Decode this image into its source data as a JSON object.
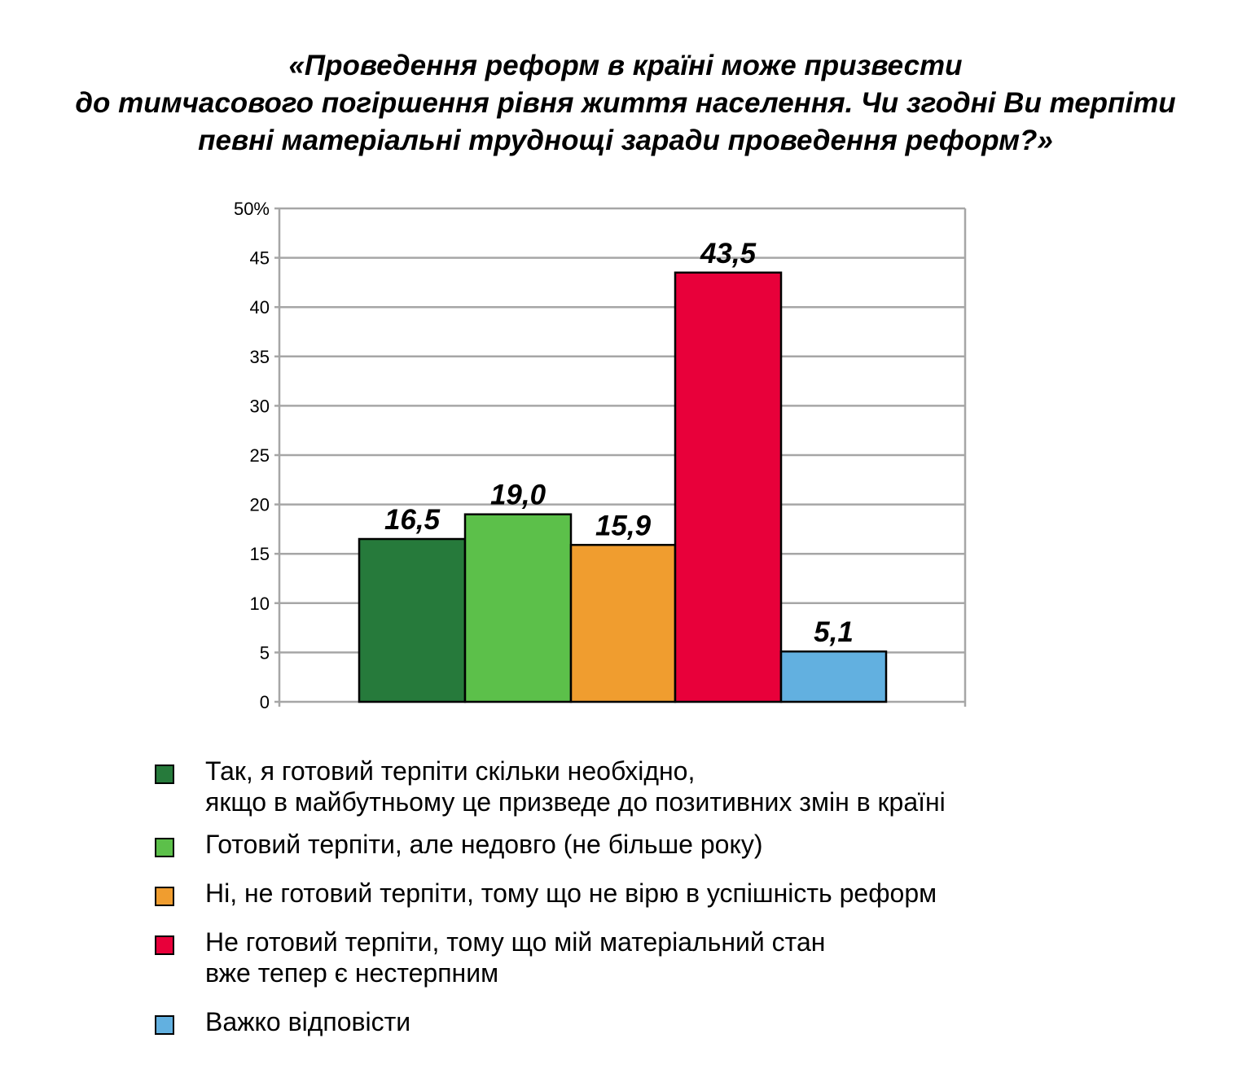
{
  "chart_data": {
    "type": "bar",
    "title_lines": [
      "«Проведення реформ в країні може призвести",
      "до тимчасового погіршення рівня життя населення. Чи згодні Ви терпіти",
      "певні матеріальні труднощі заради проведення реформ?»"
    ],
    "ylim": [
      0,
      50
    ],
    "yticks": [
      "0",
      "5",
      "10",
      "15",
      "20",
      "25",
      "30",
      "35",
      "40",
      "45",
      "50%"
    ],
    "grid": true,
    "legend_position": "bottom",
    "series": [
      {
        "name": "Так, я готовий терпіти скільки необхідно,\nякщо в майбутньому це призведе до позитивних змін в країні",
        "value": 16.5,
        "label": "16,5",
        "color": "#267a3b"
      },
      {
        "name": "Готовий терпіти, але недовго (не більше року)",
        "value": 19.0,
        "label": "19,0",
        "color": "#5cc04a"
      },
      {
        "name": "Ні, не готовий терпіти, тому що не вірю в успішність реформ",
        "value": 15.9,
        "label": "15,9",
        "color": "#f09d2f"
      },
      {
        "name": "Не готовий терпіти, тому що мій матеріальний стан\nвже тепер є нестерпним",
        "value": 43.5,
        "label": "43,5",
        "color": "#e8003a"
      },
      {
        "name": "Важко відповісти",
        "value": 5.1,
        "label": "5,1",
        "color": "#62b0e0"
      }
    ]
  }
}
